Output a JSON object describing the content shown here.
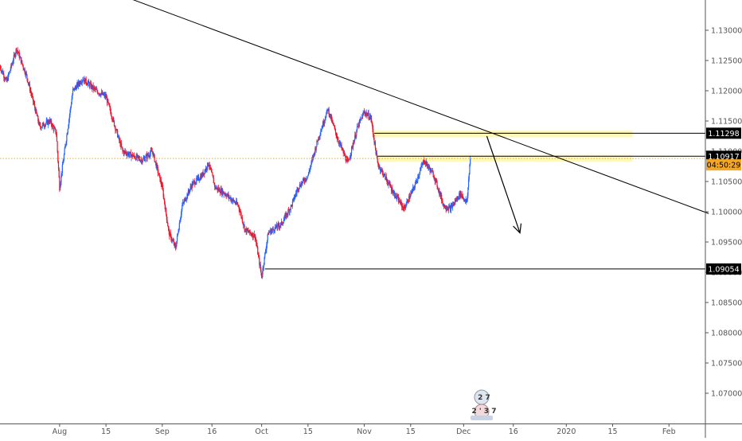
{
  "chart_data": {
    "type": "candlestick",
    "title": "",
    "xlabel": "",
    "ylabel": "",
    "ylim": [
      1.065,
      1.135
    ],
    "grid": false,
    "colors": {
      "up": "#2962ff",
      "down": "#e8182c",
      "trendline": "#000000",
      "zone_fill": "#fff59d",
      "current_price": "#f5a623",
      "label_bg": "#000000",
      "label_text": "#ffffff",
      "axis_text": "#555555"
    },
    "x_axis": {
      "start_date": "2019-07-14",
      "end_date": "2020-02-12",
      "ticks": [
        {
          "date": "2019-08-01",
          "label": "Aug"
        },
        {
          "date": "2019-08-15",
          "label": "15"
        },
        {
          "date": "2019-09-01",
          "label": "Sep"
        },
        {
          "date": "2019-09-16",
          "label": "16"
        },
        {
          "date": "2019-10-01",
          "label": "Oct"
        },
        {
          "date": "2019-10-15",
          "label": "15"
        },
        {
          "date": "2019-11-01",
          "label": "Nov"
        },
        {
          "date": "2019-11-15",
          "label": "15"
        },
        {
          "date": "2019-12-01",
          "label": "Dec"
        },
        {
          "date": "2019-12-16",
          "label": "16"
        },
        {
          "date": "2020-01-01",
          "label": "2020"
        },
        {
          "date": "2020-01-15",
          "label": "15"
        },
        {
          "date": "2020-02-01",
          "label": "Feb"
        }
      ]
    },
    "y_axis": {
      "ticks": [
        "1.13000",
        "1.12500",
        "1.12000",
        "1.11500",
        "1.11000",
        "1.10500",
        "1.10000",
        "1.09500",
        "1.09000",
        "1.08500",
        "1.08000",
        "1.07500",
        "1.07000"
      ]
    },
    "series": [
      {
        "type": "price_path",
        "points": [
          [
            "2019-07-14",
            1.124
          ],
          [
            "2019-07-16",
            1.1215
          ],
          [
            "2019-07-19",
            1.127
          ],
          [
            "2019-07-22",
            1.1225
          ],
          [
            "2019-07-26",
            1.114
          ],
          [
            "2019-07-29",
            1.115
          ],
          [
            "2019-07-31",
            1.113
          ],
          [
            "2019-08-01",
            1.104
          ],
          [
            "2019-08-05",
            1.12
          ],
          [
            "2019-08-08",
            1.122
          ],
          [
            "2019-08-12",
            1.12
          ],
          [
            "2019-08-15",
            1.119
          ],
          [
            "2019-08-20",
            1.11
          ],
          [
            "2019-08-26",
            1.1085
          ],
          [
            "2019-08-29",
            1.11
          ],
          [
            "2019-09-01",
            1.104
          ],
          [
            "2019-09-03",
            1.0965
          ],
          [
            "2019-09-05",
            1.094
          ],
          [
            "2019-09-07",
            1.101
          ],
          [
            "2019-09-10",
            1.1045
          ],
          [
            "2019-09-13",
            1.106
          ],
          [
            "2019-09-15",
            1.108
          ],
          [
            "2019-09-17",
            1.104
          ],
          [
            "2019-09-20",
            1.103
          ],
          [
            "2019-09-24",
            1.101
          ],
          [
            "2019-09-26",
            1.097
          ],
          [
            "2019-09-29",
            1.096
          ],
          [
            "2019-10-01",
            1.0893
          ],
          [
            "2019-10-03",
            1.0965
          ],
          [
            "2019-10-07",
            1.098
          ],
          [
            "2019-10-10",
            1.101
          ],
          [
            "2019-10-12",
            1.104
          ],
          [
            "2019-10-15",
            1.106
          ],
          [
            "2019-10-18",
            1.112
          ],
          [
            "2019-10-21",
            1.117
          ],
          [
            "2019-10-24",
            1.112
          ],
          [
            "2019-10-27",
            1.108
          ],
          [
            "2019-10-30",
            1.114
          ],
          [
            "2019-11-01",
            1.1165
          ],
          [
            "2019-11-03",
            1.1155
          ],
          [
            "2019-11-05",
            1.108
          ],
          [
            "2019-11-07",
            1.106
          ],
          [
            "2019-11-10",
            1.103
          ],
          [
            "2019-11-13",
            1.1005
          ],
          [
            "2019-11-16",
            1.104
          ],
          [
            "2019-11-19",
            1.1085
          ],
          [
            "2019-11-22",
            1.106
          ],
          [
            "2019-11-25",
            1.101
          ],
          [
            "2019-11-27",
            1.1005
          ],
          [
            "2019-11-30",
            1.103
          ],
          [
            "2019-12-02",
            1.1015
          ],
          [
            "2019-12-03",
            1.109
          ]
        ]
      }
    ],
    "drawings": {
      "trendline": {
        "from": [
          "2019-07-20",
          1.142
        ],
        "to": [
          "2020-02-13",
          1.0997
        ]
      },
      "resistance_zones": [
        {
          "from": "2019-11-04",
          "to": "2020-01-21",
          "low": 1.1123,
          "high": 1.1134
        },
        {
          "from": "2019-11-05",
          "to": "2020-01-21",
          "low": 1.1083,
          "high": 1.1094
        }
      ],
      "levels": [
        {
          "price": 1.11298,
          "from": "2019-11-04",
          "label": "1.11298"
        },
        {
          "price": 1.10917,
          "from": "2019-11-05",
          "label": "1.10917"
        },
        {
          "price": 1.09054,
          "from": "2019-10-02",
          "label": "1.09054"
        }
      ],
      "arrow": {
        "from": [
          "2019-12-08",
          1.1125
        ],
        "to": [
          "2019-12-18",
          1.0965
        ]
      },
      "current_price": {
        "price": 1.1088,
        "label": "04:50:29"
      }
    },
    "watermark_text": [
      "2 7",
      "2 ' 3 7"
    ]
  }
}
